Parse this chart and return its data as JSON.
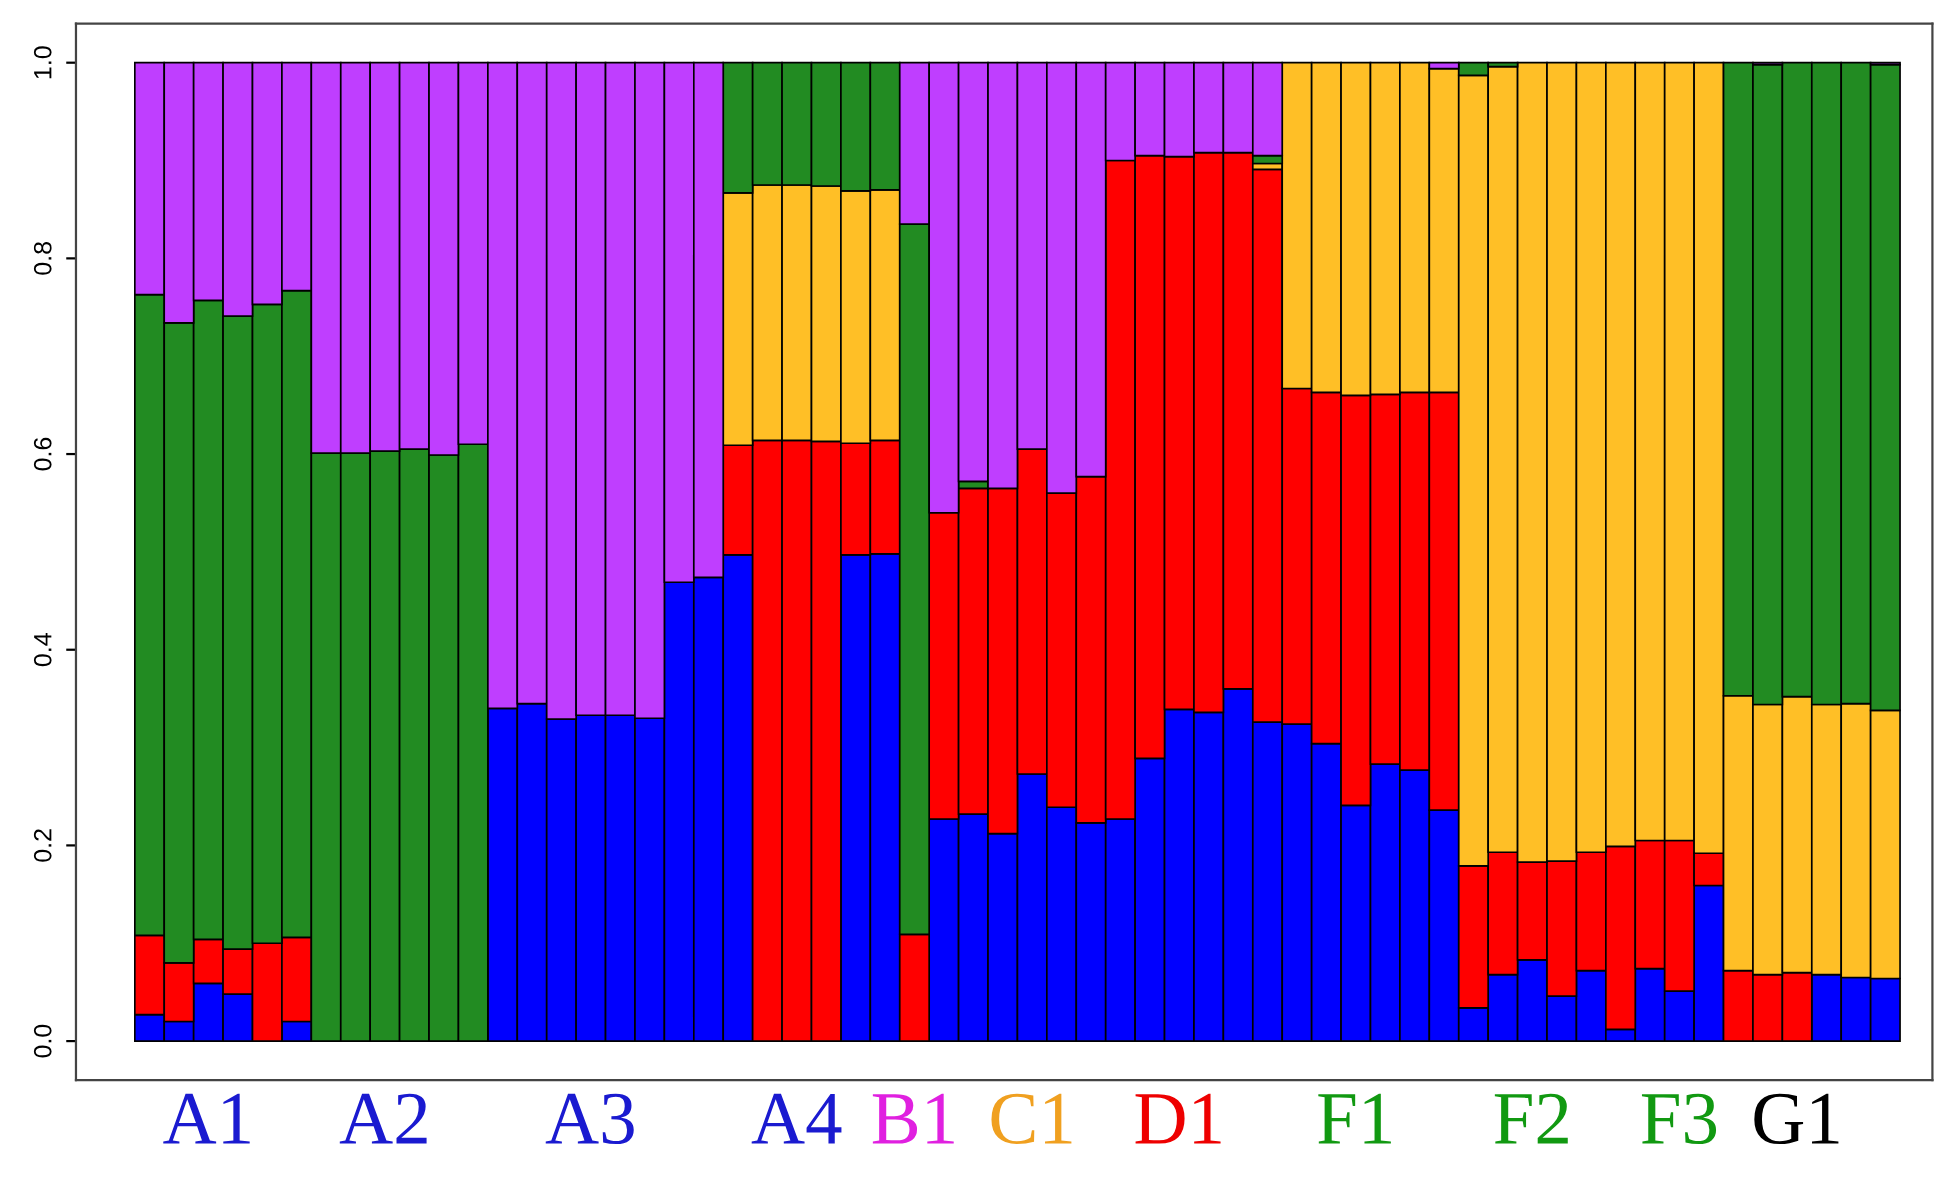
{
  "chart_data": {
    "type": "bar",
    "stacked": true,
    "categories": [
      null,
      null,
      "A1",
      null,
      null,
      null,
      null,
      null,
      "A2",
      null,
      null,
      null,
      null,
      null,
      null,
      "A3",
      null,
      null,
      null,
      null,
      null,
      null,
      "A4",
      null,
      null,
      null,
      "B1",
      null,
      null,
      null,
      "C1",
      null,
      null,
      null,
      null,
      "D1",
      null,
      null,
      null,
      null,
      null,
      "F1",
      null,
      null,
      null,
      null,
      null,
      "F2",
      null,
      null,
      null,
      null,
      "F3",
      null,
      null,
      null,
      "G1",
      null,
      null,
      null
    ],
    "series": [
      {
        "color": "#0000ff",
        "values": [
          0.027,
          0.02,
          0.059,
          0.048,
          0,
          0.02,
          0,
          0,
          0,
          0,
          0,
          0,
          0.34,
          0.345,
          0.329,
          0.333,
          0.333,
          0.33,
          0.469,
          0.474,
          0.497,
          0,
          0,
          0,
          0.497,
          0.498,
          0,
          0.227,
          0.232,
          0.212,
          0.273,
          0.239,
          0.223,
          0.227,
          0.289,
          0.339,
          0.336,
          0.36,
          0.326,
          0.324,
          0.304,
          0.241,
          0.283,
          0.277,
          0.236,
          0.034,
          0.068,
          0.083,
          0.046,
          0.072,
          0.012,
          0.074,
          0.051,
          0.159,
          0,
          0,
          0,
          0.068,
          0.065,
          0.064
        ]
      },
      {
        "color": "#ff0000",
        "values": [
          0.081,
          0.06,
          0.045,
          0.046,
          0.1,
          0.086,
          0,
          0,
          0,
          0,
          0,
          0,
          0,
          0,
          0,
          0,
          0,
          0,
          0,
          0,
          0.112,
          0.614,
          0.614,
          0.613,
          0.114,
          0.116,
          0.109,
          0.313,
          0.333,
          0.353,
          0.332,
          0.321,
          0.354,
          0.673,
          0.616,
          0.565,
          0.572,
          0.548,
          0.565,
          0.343,
          0.359,
          0.419,
          0.378,
          0.386,
          0.427,
          0.145,
          0.125,
          0.1,
          0.138,
          0.121,
          0.187,
          0.131,
          0.154,
          0.033,
          0.072,
          0.068,
          0.07,
          0,
          0,
          0
        ]
      },
      {
        "color": "#ffbf26",
        "values": [
          0,
          0,
          0,
          0,
          0,
          0,
          0,
          0,
          0,
          0,
          0,
          0,
          0,
          0,
          0,
          0,
          0,
          0,
          0,
          0,
          0.258,
          0.261,
          0.261,
          0.261,
          0.258,
          0.256,
          0,
          0,
          0,
          0,
          0,
          0,
          0,
          0,
          0,
          0,
          0,
          0,
          0.006,
          0.333,
          0.337,
          0.34,
          0.339,
          0.337,
          0.331,
          0.808,
          0.803,
          0.817,
          0.816,
          0.807,
          0.801,
          0.795,
          0.795,
          0.808,
          0.281,
          0.276,
          0.282,
          0.276,
          0.28,
          0.274
        ]
      },
      {
        "color": "#228b22",
        "values": [
          0.655,
          0.654,
          0.653,
          0.647,
          0.653,
          0.661,
          0.601,
          0.601,
          0.603,
          0.605,
          0.599,
          0.61,
          0,
          0,
          0,
          0,
          0,
          0,
          0,
          0,
          0.133,
          0.125,
          0.125,
          0.126,
          0.131,
          0.13,
          0.726,
          0,
          0.007,
          0,
          0,
          0,
          0,
          0,
          0,
          0,
          0,
          0,
          0.008,
          0,
          0,
          0,
          0,
          0,
          0,
          0.013,
          0.004,
          0,
          0,
          0,
          0,
          0,
          0,
          0,
          0.647,
          0.654,
          0.648,
          0.656,
          0.655,
          0.66
        ]
      },
      {
        "color": "#bf3eff",
        "values": [
          0.237,
          0.266,
          0.243,
          0.259,
          0.247,
          0.233,
          0.399,
          0.399,
          0.397,
          0.395,
          0.401,
          0.39,
          0.66,
          0.655,
          0.671,
          0.667,
          0.667,
          0.67,
          0.531,
          0.526,
          0,
          0,
          0,
          0,
          0,
          0,
          0.165,
          0.46,
          0.428,
          0.435,
          0.395,
          0.44,
          0.423,
          0.1,
          0.095,
          0.096,
          0.092,
          0.092,
          0.095,
          0,
          0,
          0,
          0,
          0,
          0.006,
          0,
          0,
          0,
          0,
          0,
          0,
          0,
          0,
          0,
          0,
          0.002,
          0,
          0,
          0,
          0.002
        ]
      }
    ],
    "ylim": [
      -0.04,
      1.04
    ],
    "yticks": [
      {
        "value": 0,
        "label": "0.0"
      },
      {
        "value": 0.2,
        "label": "0.2"
      },
      {
        "value": 0.4,
        "label": "0.4"
      },
      {
        "value": 0.6,
        "label": "0.6"
      },
      {
        "value": 0.8,
        "label": "0.8"
      },
      {
        "value": 1,
        "label": "1.0"
      }
    ],
    "grid": false
  }
}
